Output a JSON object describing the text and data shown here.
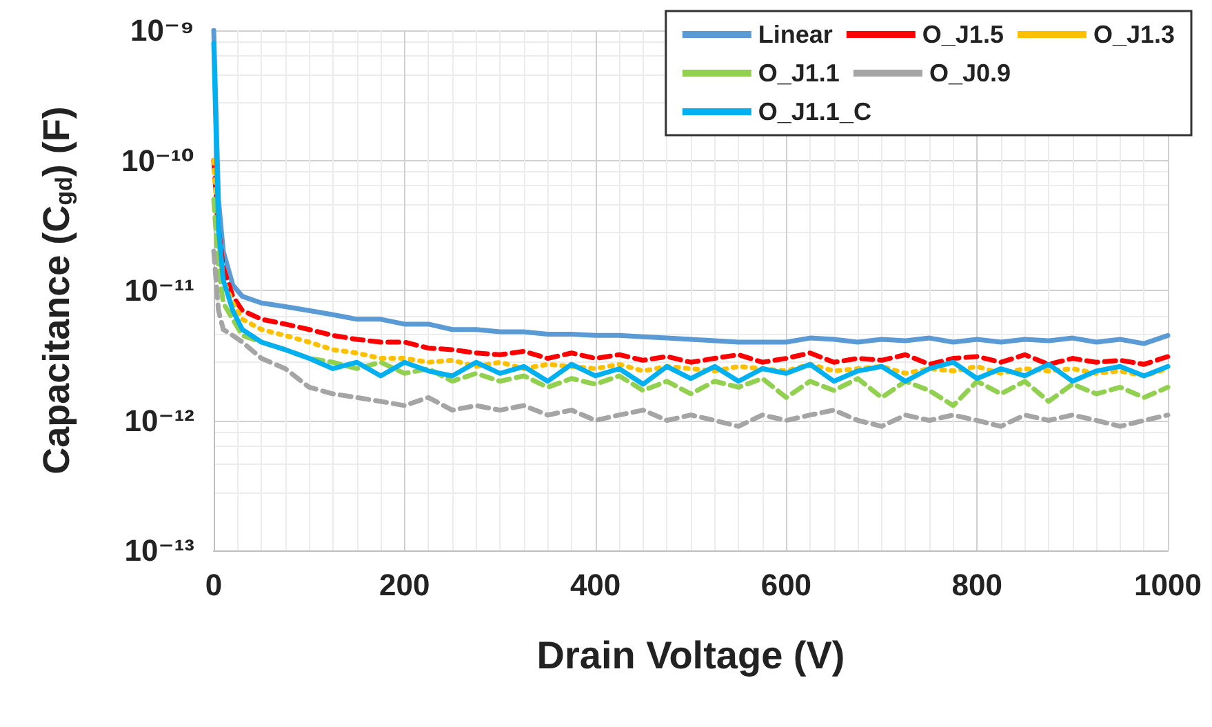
{
  "chart_data": {
    "type": "line",
    "xlabel": "Drain Voltage (V)",
    "ylabel": "Capacitance (C$_{gd}$) (F)",
    "x": [
      0,
      5,
      10,
      20,
      30,
      50,
      75,
      100,
      125,
      150,
      175,
      200,
      225,
      250,
      275,
      300,
      325,
      350,
      375,
      400,
      425,
      450,
      475,
      500,
      525,
      550,
      575,
      600,
      625,
      650,
      675,
      700,
      725,
      750,
      775,
      800,
      825,
      850,
      875,
      900,
      925,
      950,
      975,
      1000
    ],
    "series": [
      {
        "name": "Linear",
        "color": "#5b9bd5",
        "line_style": "solid",
        "values": [
          1e-09,
          5e-11,
          2e-11,
          1.1e-11,
          9e-12,
          8e-12,
          7.5e-12,
          7e-12,
          6.5e-12,
          6e-12,
          6e-12,
          5.5e-12,
          5.5e-12,
          5e-12,
          5e-12,
          4.8e-12,
          4.8e-12,
          4.6e-12,
          4.6e-12,
          4.5e-12,
          4.5e-12,
          4.4e-12,
          4.3e-12,
          4.2e-12,
          4.1e-12,
          4e-12,
          4e-12,
          4e-12,
          4.3e-12,
          4.2e-12,
          4e-12,
          4.2e-12,
          4.1e-12,
          4.3e-12,
          4e-12,
          4.2e-12,
          4e-12,
          4.2e-12,
          4.1e-12,
          4.3e-12,
          4e-12,
          4.2e-12,
          3.9e-12,
          4.5e-12
        ]
      },
      {
        "name": "O_J1.5",
        "color": "#ff0000",
        "line_style": "dashed",
        "values": [
          1e-10,
          3e-11,
          1.5e-11,
          9e-12,
          7e-12,
          6e-12,
          5.5e-12,
          5e-12,
          4.5e-12,
          4.2e-12,
          4e-12,
          4e-12,
          3.6e-12,
          3.5e-12,
          3.3e-12,
          3.2e-12,
          3.4e-12,
          3e-12,
          3.3e-12,
          3e-12,
          3.2e-12,
          2.9e-12,
          3.1e-12,
          2.8e-12,
          3e-12,
          3.2e-12,
          2.8e-12,
          3e-12,
          3.3e-12,
          2.8e-12,
          3e-12,
          2.9e-12,
          3.2e-12,
          2.7e-12,
          3e-12,
          3.1e-12,
          2.8e-12,
          3.2e-12,
          2.7e-12,
          3e-12,
          2.8e-12,
          2.9e-12,
          2.7e-12,
          3.1e-12
        ]
      },
      {
        "name": "O_J1.3",
        "color": "#ffc000",
        "line_style": "dotted",
        "values": [
          1e-10,
          2.5e-11,
          1.2e-11,
          8e-12,
          6e-12,
          5e-12,
          4.5e-12,
          4e-12,
          3.5e-12,
          3.3e-12,
          3e-12,
          3e-12,
          2.8e-12,
          2.9e-12,
          2.6e-12,
          2.8e-12,
          2.5e-12,
          2.7e-12,
          2.6e-12,
          2.5e-12,
          2.7e-12,
          2.4e-12,
          2.6e-12,
          2.5e-12,
          2.4e-12,
          2.6e-12,
          2.5e-12,
          2.4e-12,
          2.7e-12,
          2.4e-12,
          2.5e-12,
          2.6e-12,
          2.3e-12,
          2.5e-12,
          2.4e-12,
          2.6e-12,
          2.3e-12,
          2.5e-12,
          2.4e-12,
          2.5e-12,
          2.3e-12,
          2.4e-12,
          2.2e-12,
          2.5e-12
        ]
      },
      {
        "name": "O_J1.1",
        "color": "#92d050",
        "line_style": "dashed",
        "values": [
          5e-11,
          1.5e-11,
          8e-12,
          6e-12,
          4.5e-12,
          4e-12,
          3.5e-12,
          3e-12,
          2.8e-12,
          2.5e-12,
          2.8e-12,
          2.3e-12,
          2.5e-12,
          2e-12,
          2.3e-12,
          2e-12,
          2.2e-12,
          1.8e-12,
          2.1e-12,
          1.9e-12,
          2.2e-12,
          1.7e-12,
          2e-12,
          1.6e-12,
          2e-12,
          1.8e-12,
          2.1e-12,
          1.5e-12,
          2e-12,
          1.7e-12,
          2.1e-12,
          1.5e-12,
          2e-12,
          1.7e-12,
          1.3e-12,
          2e-12,
          1.6e-12,
          2e-12,
          1.4e-12,
          1.9e-12,
          1.6e-12,
          1.8e-12,
          1.5e-12,
          1.8e-12
        ]
      },
      {
        "name": "O_J0.9",
        "color": "#a5a5a5",
        "line_style": "dashed",
        "values": [
          2e-11,
          7e-12,
          5e-12,
          4.5e-12,
          4e-12,
          3e-12,
          2.5e-12,
          1.8e-12,
          1.6e-12,
          1.5e-12,
          1.4e-12,
          1.3e-12,
          1.5e-12,
          1.2e-12,
          1.3e-12,
          1.2e-12,
          1.3e-12,
          1.1e-12,
          1.2e-12,
          1e-12,
          1.1e-12,
          1.2e-12,
          1e-12,
          1.1e-12,
          1e-12,
          9e-13,
          1.1e-12,
          1e-12,
          1.1e-12,
          1.2e-12,
          1e-12,
          9e-13,
          1.1e-12,
          1e-12,
          1.1e-12,
          1e-12,
          9e-13,
          1.1e-12,
          1e-12,
          1.1e-12,
          1e-12,
          9e-13,
          1e-12,
          1.1e-12
        ]
      },
      {
        "name": "O_J1.1_C",
        "color": "#00b0f0",
        "line_style": "solid",
        "values": [
          8e-10,
          3e-11,
          1.2e-11,
          7e-12,
          5e-12,
          4e-12,
          3.5e-12,
          3e-12,
          2.5e-12,
          2.8e-12,
          2.2e-12,
          2.8e-12,
          2.4e-12,
          2.2e-12,
          2.8e-12,
          2.3e-12,
          2.6e-12,
          2e-12,
          2.7e-12,
          2.2e-12,
          2.5e-12,
          1.9e-12,
          2.6e-12,
          2.1e-12,
          2.6e-12,
          2e-12,
          2.5e-12,
          2.3e-12,
          2.7e-12,
          2e-12,
          2.4e-12,
          2.6e-12,
          2e-12,
          2.5e-12,
          2.8e-12,
          2.1e-12,
          2.5e-12,
          2.2e-12,
          2.7e-12,
          2e-12,
          2.4e-12,
          2.6e-12,
          2.2e-12,
          2.6e-12
        ]
      }
    ],
    "xlim": [
      0,
      1000
    ],
    "xticks": [
      0,
      200,
      400,
      600,
      800,
      1000
    ],
    "ylim": [
      1e-13,
      1e-09
    ],
    "yticks": [
      {
        "value": 1e-13,
        "label": "10⁻¹³"
      },
      {
        "value": 1e-12,
        "label": "10⁻¹²"
      },
      {
        "value": 1e-11,
        "label": "10⁻¹¹"
      },
      {
        "value": 1e-10,
        "label": "10⁻¹⁰"
      },
      {
        "value": 1e-09,
        "label": "10⁻⁹"
      }
    ],
    "log": "y",
    "grid": true,
    "legend": "top right",
    "marker": "none"
  }
}
